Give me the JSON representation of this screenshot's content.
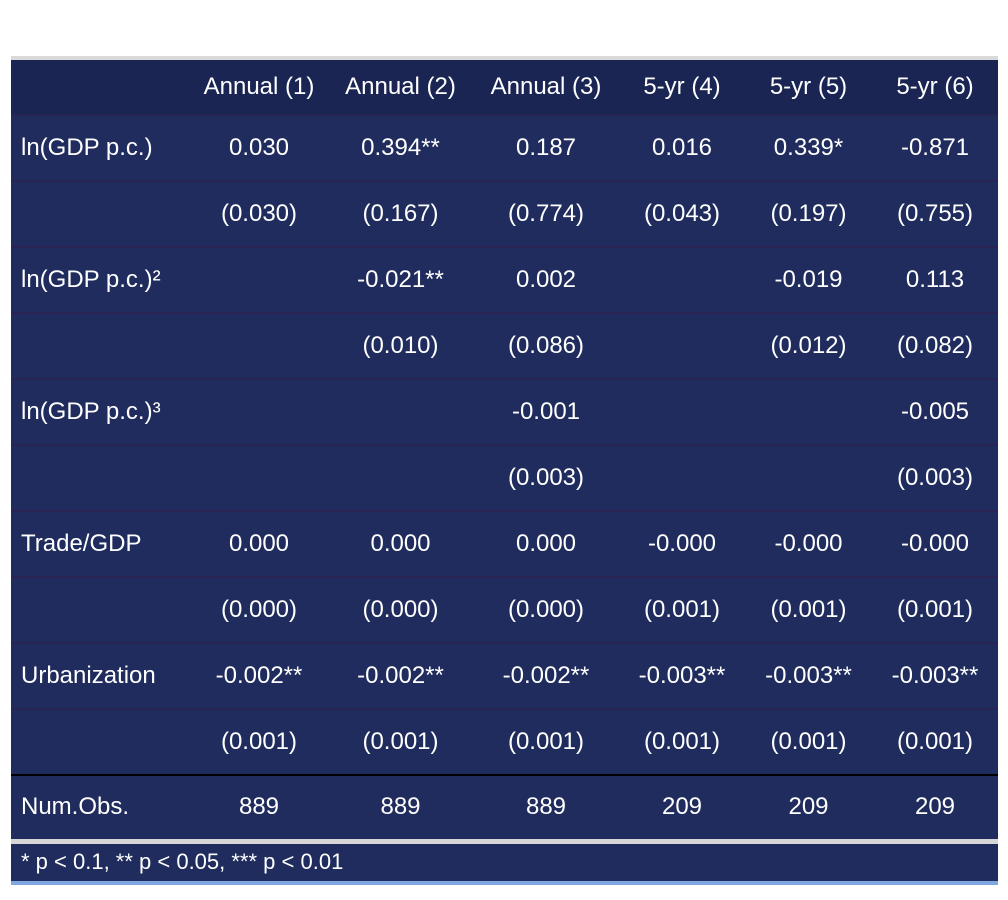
{
  "table": {
    "columns": [
      "Annual (1)",
      "Annual (2)",
      "Annual (3)",
      "5-yr (4)",
      "5-yr (5)",
      "5-yr (6)"
    ],
    "rows": [
      [
        "ln(GDP p.c.)",
        "0.030",
        "0.394**",
        "0.187",
        "0.016",
        "0.339*",
        "-0.871"
      ],
      [
        null,
        "(0.030)",
        "(0.167)",
        "(0.774)",
        "(0.043)",
        "(0.197)",
        "(0.755)"
      ],
      [
        "ln(GDP p.c.)²",
        null,
        "-0.021**",
        "0.002",
        null,
        "-0.019",
        "0.113"
      ],
      [
        null,
        null,
        "(0.010)",
        "(0.086)",
        null,
        "(0.012)",
        "(0.082)"
      ],
      [
        "ln(GDP p.c.)³",
        null,
        null,
        "-0.001",
        null,
        null,
        "-0.005"
      ],
      [
        null,
        null,
        null,
        "(0.003)",
        null,
        null,
        "(0.003)"
      ],
      [
        "Trade/GDP",
        "0.000",
        "0.000",
        "0.000",
        "-0.000",
        "-0.000",
        "-0.000"
      ],
      [
        null,
        "(0.000)",
        "(0.000)",
        "(0.000)",
        "(0.001)",
        "(0.001)",
        "(0.001)"
      ],
      [
        "Urbanization",
        "-0.002**",
        "-0.002**",
        "-0.002**",
        "-0.003**",
        "-0.003**",
        "-0.003**"
      ],
      [
        null,
        "(0.001)",
        "(0.001)",
        "(0.001)",
        "(0.001)",
        "(0.001)",
        "(0.001)"
      ]
    ],
    "summary": [
      [
        "Num.Obs.",
        "889",
        "889",
        "889",
        "209",
        "209",
        "209"
      ]
    ],
    "footnote": "* p < 0.1, ** p < 0.05, *** p < 0.01"
  }
}
